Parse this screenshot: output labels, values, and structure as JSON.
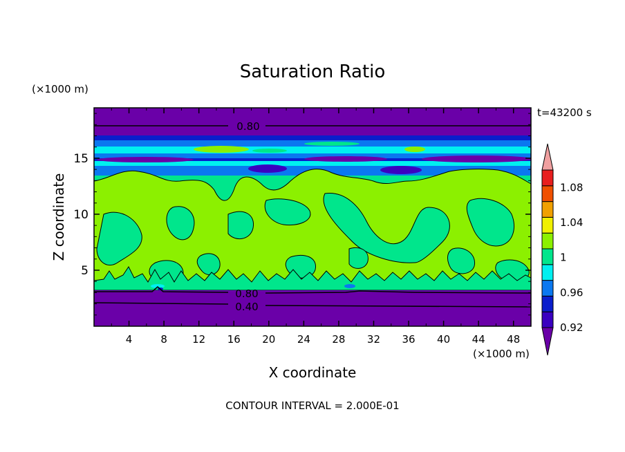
{
  "chart_data": {
    "type": "filled-contour",
    "title": "Saturation Ratio",
    "time_label": "t=43200 s",
    "footer": "CONTOUR INTERVAL = 2.000E-01",
    "x_axis": {
      "label": "X coordinate",
      "unit_label": "(×1000 m)",
      "range": [
        0,
        50
      ],
      "ticks": [
        4,
        8,
        12,
        16,
        20,
        24,
        28,
        32,
        36,
        40,
        44,
        48
      ],
      "tick_labels": [
        "4",
        "8",
        "12",
        "16",
        "20",
        "24",
        "28",
        "32",
        "36",
        "40",
        "44",
        "48"
      ]
    },
    "y_axis": {
      "label": "Z coordinate",
      "unit_label": "(×1000 m)",
      "range": [
        0,
        19.5
      ],
      "ticks": [
        5,
        10,
        15
      ],
      "tick_labels": [
        "5",
        "10",
        "15"
      ]
    },
    "colorbar": {
      "levels": [
        0.92,
        0.94,
        0.96,
        0.98,
        1.0,
        1.02,
        1.04,
        1.06,
        1.08,
        1.1
      ],
      "tick_labels": [
        "0.92",
        "0.96",
        "1",
        "1.04",
        "1.08"
      ],
      "colors": {
        "below": "#6a00a8",
        "bins": [
          "#3a00c0",
          "#0a1ecc",
          "#0a78f0",
          "#00f0f0",
          "#00e68c",
          "#8cf000",
          "#f0f000",
          "#f0a000",
          "#f05000",
          "#e81e1e"
        ],
        "above": "#f0a0a0"
      }
    },
    "contour_labels": [
      {
        "text": "0.80",
        "x": 18.5,
        "y": 18.0
      },
      {
        "text": "0.80",
        "x": 17.8,
        "y": 3.0
      },
      {
        "text": "0.40",
        "x": 17.8,
        "y": 1.7
      }
    ]
  }
}
